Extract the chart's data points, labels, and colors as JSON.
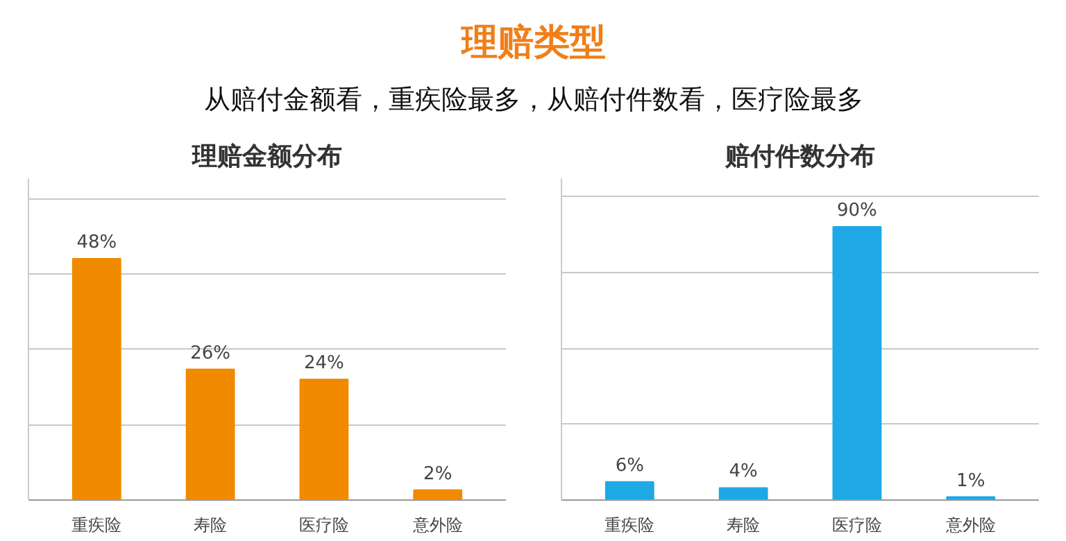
{
  "chart_data": [
    {
      "type": "other",
      "title": "理赔类型",
      "subtitle": "从赔付金额看，重疾险最多，从赔付件数看，医疗险最多"
    },
    {
      "type": "bar",
      "title": "理赔金额分布",
      "categories": [
        "重疾险",
        "寿险",
        "医疗险",
        "意外险"
      ],
      "values": [
        48,
        26,
        24,
        2
      ],
      "value_labels": [
        "48%",
        "26%",
        "24%",
        "2%"
      ],
      "color": "#f28a00",
      "ylim": [
        0,
        64
      ],
      "yticks": [
        {
          "value": 0,
          "label": null
        },
        {
          "value": 15,
          "label": null
        },
        {
          "value": 30,
          "label": null
        },
        {
          "value": 45,
          "label": null
        },
        {
          "value": 60,
          "label": null
        }
      ],
      "grid": "y",
      "tick_labels": "x"
    },
    {
      "type": "bar",
      "title": "赔付件数分布",
      "categories": [
        "重疾险",
        "寿险",
        "医疗险",
        "意外险"
      ],
      "values": [
        6,
        4,
        90,
        1
      ],
      "value_labels": [
        "6%",
        "4%",
        "90%",
        "1%"
      ],
      "color": "#1ea8e6",
      "ylim": [
        0,
        106
      ],
      "yticks": [
        {
          "value": 0,
          "label": null
        },
        {
          "value": 25,
          "label": null
        },
        {
          "value": 50,
          "label": null
        },
        {
          "value": 75,
          "label": null
        },
        {
          "value": 100,
          "label": null
        }
      ],
      "grid": "y",
      "tick_labels": "x"
    }
  ]
}
